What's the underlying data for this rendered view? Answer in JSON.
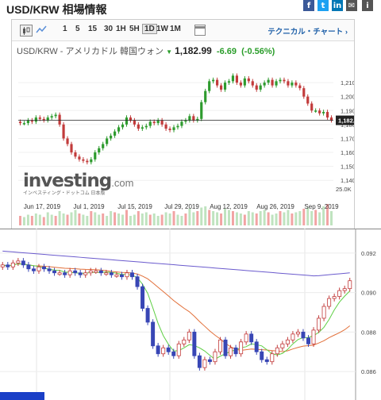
{
  "page": {
    "title": "USD/KRW 相場情報"
  },
  "social": [
    {
      "name": "facebook-icon",
      "glyph": "f",
      "color": "#3b5998"
    },
    {
      "name": "twitter-icon",
      "glyph": "t",
      "color": "#1da1f2"
    },
    {
      "name": "linkedin-icon",
      "glyph": "in",
      "color": "#0077b5"
    },
    {
      "name": "email-icon",
      "glyph": "✉",
      "color": "#555555"
    },
    {
      "name": "info-icon",
      "glyph": "i",
      "color": "#555555"
    }
  ],
  "toolbar": {
    "timeframes": [
      "1",
      "5",
      "15",
      "30",
      "1H",
      "5H",
      "1D",
      "1W",
      "1M"
    ],
    "active_timeframe": "1D",
    "technical_link": "テクニカル・チャート ›"
  },
  "quote": {
    "pair": "USD/KRW - アメリカドル 韓国ウォン",
    "last": "1,182.99",
    "change": "-6.69",
    "change_pct": "(-0.56%)",
    "up_color": "#2a9d2a",
    "down_color": "#c0392b"
  },
  "logo": {
    "main": "investing",
    "suffix": ".com",
    "tagline": "インベスティング・ドットコム 日本版"
  },
  "chart_data": [
    {
      "type": "candlestick",
      "x_labels": [
        "Jun 17, 2019",
        "Jul 1, 2019",
        "Jul 15, 2019",
        "Jul 29, 2019",
        "Aug 12, 2019",
        "Aug 26, 2019",
        "Sep 9, 2019"
      ],
      "y_ticks": [
        "1,210.00",
        "1,200.00",
        "1,190.00",
        "1,180.00",
        "1,170.00",
        "1,160.00",
        "1,150.00",
        "1,140.00"
      ],
      "y_range": [
        1135,
        1222
      ],
      "current_price_label": "1,182.99",
      "current_price": 1182.99,
      "volume_tick": "25.0K",
      "closes": [
        1181,
        1181,
        1183,
        1182,
        1185,
        1184,
        1183,
        1185,
        1186,
        1187,
        1180,
        1170,
        1166,
        1160,
        1157,
        1155,
        1154,
        1153,
        1155,
        1160,
        1163,
        1166,
        1170,
        1172,
        1175,
        1178,
        1180,
        1185,
        1183,
        1180,
        1177,
        1178,
        1179,
        1182,
        1181,
        1183,
        1180,
        1177,
        1176,
        1178,
        1179,
        1182,
        1183,
        1186,
        1183,
        1184,
        1196,
        1204,
        1211,
        1212,
        1208,
        1205,
        1210,
        1211,
        1215,
        1210,
        1208,
        1213,
        1211,
        1208,
        1205,
        1208,
        1210,
        1212,
        1208,
        1211,
        1212,
        1211,
        1208,
        1210,
        1208,
        1206,
        1200,
        1195,
        1190,
        1190,
        1188,
        1189,
        1185,
        1183
      ],
      "volume": [
        8,
        7,
        9,
        8,
        10,
        9,
        7,
        11,
        9,
        8,
        12,
        10,
        9,
        11,
        13,
        10,
        9,
        8,
        12,
        11,
        9,
        10,
        8,
        12,
        11,
        10,
        9,
        13,
        8,
        9,
        12,
        10,
        11,
        9,
        10,
        8,
        9,
        11,
        10,
        12,
        9,
        8,
        10,
        14,
        11,
        12,
        15,
        16,
        13,
        12,
        11,
        10,
        14,
        13,
        12,
        11,
        10,
        9,
        12,
        11,
        10,
        12,
        13,
        11,
        9,
        10,
        12,
        11,
        13,
        10,
        11,
        12,
        14,
        15,
        12,
        13,
        11,
        16,
        18,
        12
      ]
    },
    {
      "type": "candlestick",
      "y_ticks": [
        "0.092",
        "0.090",
        "0.088",
        "0.086"
      ],
      "y_range": [
        0.0848,
        0.093
      ],
      "closes": [
        0.0914,
        0.0913,
        0.0915,
        0.0916,
        0.0914,
        0.0912,
        0.0911,
        0.0913,
        0.0912,
        0.0911,
        0.091,
        0.091,
        0.0909,
        0.0911,
        0.091,
        0.0909,
        0.091,
        0.0911,
        0.0911,
        0.091,
        0.091,
        0.0909,
        0.0909,
        0.0908,
        0.091,
        0.0908,
        0.0903,
        0.0892,
        0.0885,
        0.0873,
        0.0869,
        0.0872,
        0.087,
        0.0868,
        0.0874,
        0.0876,
        0.088,
        0.0868,
        0.0862,
        0.0866,
        0.0865,
        0.087,
        0.0876,
        0.0868,
        0.0872,
        0.0869,
        0.0875,
        0.0879,
        0.0875,
        0.087,
        0.0866,
        0.0865,
        0.0869,
        0.0872,
        0.0874,
        0.0876,
        0.0879,
        0.088,
        0.0877,
        0.0874,
        0.0881,
        0.0887,
        0.0893,
        0.0897,
        0.0898,
        0.0901,
        0.0902,
        0.0906
      ],
      "ma_short_color": "#5fcf45",
      "ma_mid_color": "#e2703a",
      "ma_long_color": "#6a5acd"
    }
  ]
}
